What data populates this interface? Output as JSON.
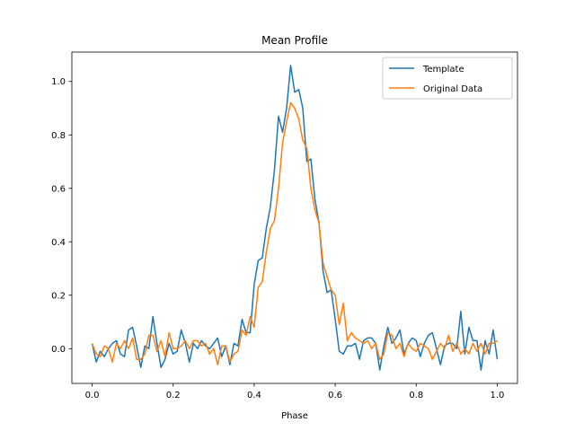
{
  "chart_data": {
    "type": "line",
    "title": "Mean Profile",
    "xlabel": "Phase",
    "ylabel": "",
    "xlim": [
      -0.05,
      1.05
    ],
    "ylim": [
      -0.13,
      1.11
    ],
    "xticks": [
      0.0,
      0.2,
      0.4,
      0.6,
      0.8,
      1.0
    ],
    "xtick_labels": [
      "0.0",
      "0.2",
      "0.4",
      "0.6",
      "0.8",
      "1.0"
    ],
    "yticks": [
      0.0,
      0.2,
      0.4,
      0.6,
      0.8,
      1.0
    ],
    "ytick_labels": [
      "0.0",
      "0.2",
      "0.4",
      "0.6",
      "0.8",
      "1.0"
    ],
    "grid": false,
    "legend_position": "upper right",
    "series": [
      {
        "name": "Template",
        "color": "#1f77b4",
        "x": [
          0.0,
          0.01,
          0.02,
          0.03,
          0.04,
          0.05,
          0.06,
          0.07,
          0.08,
          0.09,
          0.1,
          0.11,
          0.12,
          0.13,
          0.14,
          0.15,
          0.16,
          0.17,
          0.18,
          0.19,
          0.2,
          0.21,
          0.22,
          0.23,
          0.24,
          0.25,
          0.26,
          0.27,
          0.28,
          0.29,
          0.3,
          0.31,
          0.32,
          0.33,
          0.34,
          0.35,
          0.36,
          0.37,
          0.38,
          0.39,
          0.4,
          0.41,
          0.42,
          0.43,
          0.44,
          0.45,
          0.46,
          0.47,
          0.48,
          0.49,
          0.5,
          0.51,
          0.52,
          0.53,
          0.54,
          0.55,
          0.56,
          0.57,
          0.58,
          0.59,
          0.6,
          0.61,
          0.62,
          0.63,
          0.64,
          0.65,
          0.66,
          0.67,
          0.68,
          0.69,
          0.7,
          0.71,
          0.72,
          0.73,
          0.74,
          0.75,
          0.76,
          0.77,
          0.78,
          0.79,
          0.8,
          0.81,
          0.82,
          0.83,
          0.84,
          0.85,
          0.86,
          0.87,
          0.88,
          0.89,
          0.9,
          0.91,
          0.92,
          0.93,
          0.94,
          0.95,
          0.96,
          0.97,
          0.98,
          0.99,
          1.0
        ],
        "y": [
          0.02,
          -0.05,
          -0.01,
          -0.03,
          0.0,
          0.02,
          0.03,
          -0.02,
          -0.03,
          0.07,
          0.08,
          0.01,
          -0.07,
          0.01,
          0.0,
          0.12,
          0.02,
          -0.07,
          -0.04,
          0.02,
          -0.02,
          -0.01,
          0.07,
          0.02,
          -0.05,
          0.02,
          0.0,
          0.03,
          0.01,
          0.0,
          0.02,
          0.04,
          -0.03,
          0.01,
          -0.06,
          0.02,
          0.01,
          0.11,
          0.06,
          0.06,
          0.24,
          0.33,
          0.34,
          0.45,
          0.53,
          0.67,
          0.87,
          0.81,
          0.9,
          1.06,
          0.96,
          0.97,
          0.9,
          0.7,
          0.71,
          0.56,
          0.47,
          0.29,
          0.21,
          0.22,
          0.11,
          -0.01,
          -0.02,
          0.01,
          0.01,
          0.02,
          -0.04,
          0.03,
          0.04,
          0.04,
          0.02,
          -0.08,
          0.01,
          0.08,
          0.02,
          0.04,
          0.07,
          -0.02,
          0.02,
          0.04,
          0.03,
          -0.03,
          0.02,
          0.05,
          0.06,
          0.0,
          -0.06,
          0.01,
          0.02,
          0.02,
          0.0,
          0.14,
          -0.02,
          0.08,
          0.03,
          0.03,
          -0.08,
          0.03,
          -0.02,
          0.07,
          -0.04
        ]
      },
      {
        "name": "Original Data",
        "color": "#ff7f0e",
        "x": [
          0.0,
          0.01,
          0.02,
          0.03,
          0.04,
          0.05,
          0.06,
          0.07,
          0.08,
          0.09,
          0.1,
          0.11,
          0.12,
          0.13,
          0.14,
          0.15,
          0.16,
          0.17,
          0.18,
          0.19,
          0.2,
          0.21,
          0.22,
          0.23,
          0.24,
          0.25,
          0.26,
          0.27,
          0.28,
          0.29,
          0.3,
          0.31,
          0.32,
          0.33,
          0.34,
          0.35,
          0.36,
          0.37,
          0.38,
          0.39,
          0.4,
          0.41,
          0.42,
          0.43,
          0.44,
          0.45,
          0.46,
          0.47,
          0.48,
          0.49,
          0.5,
          0.51,
          0.52,
          0.53,
          0.54,
          0.55,
          0.56,
          0.57,
          0.58,
          0.59,
          0.6,
          0.61,
          0.62,
          0.63,
          0.64,
          0.65,
          0.66,
          0.67,
          0.68,
          0.69,
          0.7,
          0.71,
          0.72,
          0.73,
          0.74,
          0.75,
          0.76,
          0.77,
          0.78,
          0.79,
          0.8,
          0.81,
          0.82,
          0.83,
          0.84,
          0.85,
          0.86,
          0.87,
          0.88,
          0.89,
          0.9,
          0.91,
          0.92,
          0.93,
          0.94,
          0.95,
          0.96,
          0.97,
          0.98,
          0.99,
          1.0
        ],
        "y": [
          0.02,
          -0.02,
          -0.03,
          0.01,
          0.0,
          -0.05,
          0.02,
          0.0,
          0.03,
          0.0,
          0.04,
          -0.04,
          -0.04,
          -0.02,
          0.05,
          0.05,
          -0.01,
          0.03,
          -0.03,
          0.06,
          0.0,
          0.0,
          0.01,
          0.03,
          0.0,
          0.03,
          0.03,
          0.01,
          0.02,
          -0.02,
          0.0,
          -0.06,
          0.01,
          0.01,
          -0.05,
          -0.02,
          -0.01,
          0.07,
          0.05,
          0.12,
          0.08,
          0.23,
          0.25,
          0.36,
          0.45,
          0.48,
          0.6,
          0.77,
          0.85,
          0.92,
          0.9,
          0.86,
          0.78,
          0.75,
          0.6,
          0.52,
          0.47,
          0.32,
          0.27,
          0.22,
          0.2,
          0.09,
          0.17,
          0.03,
          0.06,
          0.04,
          0.03,
          0.02,
          0.03,
          0.0,
          0.02,
          -0.04,
          -0.02,
          0.06,
          0.05,
          0.0,
          0.02,
          -0.03,
          0.02,
          0.0,
          -0.01,
          0.02,
          0.01,
          0.0,
          -0.04,
          -0.01,
          0.02,
          0.0,
          0.05,
          -0.01,
          0.02,
          -0.02,
          0.0,
          -0.02,
          0.02,
          -0.01,
          0.02,
          -0.02,
          0.02,
          0.02,
          0.03
        ]
      }
    ]
  }
}
